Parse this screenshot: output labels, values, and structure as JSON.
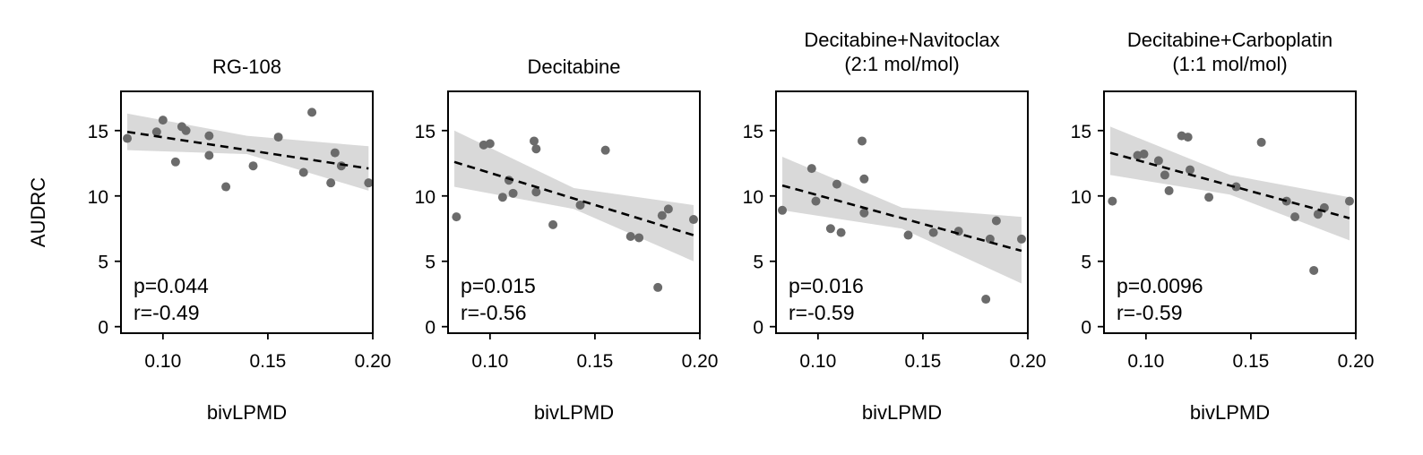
{
  "chart_data": [
    {
      "type": "scatter",
      "title": [
        "RG-108"
      ],
      "xlabel": "bivLPMD",
      "ylabel": "AUDRC",
      "xlim": [
        0.08,
        0.2
      ],
      "ylim": [
        -0.5,
        18
      ],
      "xticks": [
        "0.10",
        "0.15",
        "0.20"
      ],
      "yticks": [
        "0",
        "5",
        "10",
        "15"
      ],
      "points": [
        [
          0.083,
          14.4
        ],
        [
          0.097,
          14.9
        ],
        [
          0.1,
          15.8
        ],
        [
          0.106,
          12.6
        ],
        [
          0.109,
          15.3
        ],
        [
          0.111,
          15.0
        ],
        [
          0.122,
          14.6
        ],
        [
          0.122,
          13.1
        ],
        [
          0.13,
          10.7
        ],
        [
          0.143,
          12.3
        ],
        [
          0.155,
          14.5
        ],
        [
          0.167,
          11.8
        ],
        [
          0.171,
          16.4
        ],
        [
          0.18,
          11.0
        ],
        [
          0.182,
          13.3
        ],
        [
          0.185,
          12.3
        ],
        [
          0.198,
          11.0
        ]
      ],
      "fit_line": [
        [
          0.083,
          14.9
        ],
        [
          0.198,
          12.1
        ]
      ],
      "ci_band": {
        "lower": [
          [
            0.083,
            13.5
          ],
          [
            0.14,
            13.2
          ],
          [
            0.198,
            10.4
          ]
        ],
        "upper": [
          [
            0.083,
            16.3
          ],
          [
            0.14,
            14.6
          ],
          [
            0.198,
            13.8
          ]
        ]
      },
      "annotation": [
        "p=0.044",
        "r=-0.49"
      ],
      "show_ylabel": true
    },
    {
      "type": "scatter",
      "title": [
        "Decitabine"
      ],
      "xlabel": "bivLPMD",
      "ylabel": "AUDRC",
      "xlim": [
        0.08,
        0.2
      ],
      "ylim": [
        -0.5,
        18
      ],
      "xticks": [
        "0.10",
        "0.15",
        "0.20"
      ],
      "yticks": [
        "0",
        "5",
        "10",
        "15"
      ],
      "points": [
        [
          0.084,
          8.4
        ],
        [
          0.097,
          13.9
        ],
        [
          0.1,
          14.0
        ],
        [
          0.106,
          9.9
        ],
        [
          0.109,
          11.2
        ],
        [
          0.111,
          10.2
        ],
        [
          0.121,
          14.2
        ],
        [
          0.122,
          13.6
        ],
        [
          0.122,
          10.3
        ],
        [
          0.13,
          7.8
        ],
        [
          0.143,
          9.3
        ],
        [
          0.155,
          13.5
        ],
        [
          0.167,
          6.9
        ],
        [
          0.171,
          6.8
        ],
        [
          0.18,
          3.0
        ],
        [
          0.182,
          8.5
        ],
        [
          0.185,
          9.0
        ],
        [
          0.197,
          8.2
        ]
      ],
      "fit_line": [
        [
          0.083,
          12.6
        ],
        [
          0.197,
          7.0
        ]
      ],
      "ci_band": {
        "lower": [
          [
            0.083,
            10.7
          ],
          [
            0.14,
            9.0
          ],
          [
            0.197,
            5.0
          ]
        ],
        "upper": [
          [
            0.083,
            15.0
          ],
          [
            0.14,
            10.6
          ],
          [
            0.197,
            9.3
          ]
        ]
      },
      "annotation": [
        "p=0.015",
        "r=-0.56"
      ],
      "show_ylabel": false
    },
    {
      "type": "scatter",
      "title": [
        "Decitabine+Navitoclax",
        "(2:1 mol/mol)"
      ],
      "xlabel": "bivLPMD",
      "ylabel": "AUDRC",
      "xlim": [
        0.08,
        0.2
      ],
      "ylim": [
        -0.5,
        18
      ],
      "xticks": [
        "0.10",
        "0.15",
        "0.20"
      ],
      "yticks": [
        "0",
        "5",
        "10",
        "15"
      ],
      "points": [
        [
          0.083,
          8.9
        ],
        [
          0.097,
          12.1
        ],
        [
          0.099,
          9.6
        ],
        [
          0.106,
          7.5
        ],
        [
          0.109,
          10.9
        ],
        [
          0.111,
          7.2
        ],
        [
          0.121,
          14.2
        ],
        [
          0.122,
          11.3
        ],
        [
          0.122,
          8.7
        ],
        [
          0.143,
          7.0
        ],
        [
          0.155,
          7.2
        ],
        [
          0.167,
          7.3
        ],
        [
          0.18,
          2.1
        ],
        [
          0.182,
          6.7
        ],
        [
          0.185,
          8.1
        ],
        [
          0.197,
          6.7
        ]
      ],
      "fit_line": [
        [
          0.083,
          10.8
        ],
        [
          0.197,
          5.8
        ]
      ],
      "ci_band": {
        "lower": [
          [
            0.083,
            8.9
          ],
          [
            0.14,
            7.5
          ],
          [
            0.197,
            3.3
          ]
        ],
        "upper": [
          [
            0.083,
            13.0
          ],
          [
            0.14,
            9.1
          ],
          [
            0.197,
            8.4
          ]
        ]
      },
      "annotation": [
        "p=0.016",
        "r=-0.59"
      ],
      "show_ylabel": false
    },
    {
      "type": "scatter",
      "title": [
        "Decitabine+Carboplatin",
        "(1:1 mol/mol)"
      ],
      "xlabel": "bivLPMD",
      "ylabel": "AUDRC",
      "xlim": [
        0.08,
        0.2
      ],
      "ylim": [
        -0.5,
        18
      ],
      "xticks": [
        "0.10",
        "0.15",
        "0.20"
      ],
      "yticks": [
        "0",
        "5",
        "10",
        "15"
      ],
      "points": [
        [
          0.084,
          9.6
        ],
        [
          0.096,
          13.1
        ],
        [
          0.099,
          13.2
        ],
        [
          0.106,
          12.7
        ],
        [
          0.109,
          11.6
        ],
        [
          0.111,
          10.4
        ],
        [
          0.117,
          14.6
        ],
        [
          0.12,
          14.5
        ],
        [
          0.121,
          12.0
        ],
        [
          0.13,
          9.9
        ],
        [
          0.143,
          10.7
        ],
        [
          0.155,
          14.1
        ],
        [
          0.167,
          9.6
        ],
        [
          0.171,
          8.4
        ],
        [
          0.18,
          4.3
        ],
        [
          0.182,
          8.6
        ],
        [
          0.185,
          9.1
        ],
        [
          0.197,
          9.6
        ]
      ],
      "fit_line": [
        [
          0.083,
          13.3
        ],
        [
          0.197,
          8.3
        ]
      ],
      "ci_band": {
        "lower": [
          [
            0.083,
            11.6
          ],
          [
            0.14,
            10.1
          ],
          [
            0.197,
            6.6
          ]
        ],
        "upper": [
          [
            0.083,
            15.3
          ],
          [
            0.14,
            11.6
          ],
          [
            0.197,
            9.9
          ]
        ]
      },
      "annotation": [
        "p=0.0096",
        "r=-0.59"
      ],
      "show_ylabel": false
    }
  ],
  "colors": {
    "point": "#6b6b6b",
    "band": "#d9d9d9",
    "fit_line": "#000000",
    "axis": "#000000"
  }
}
